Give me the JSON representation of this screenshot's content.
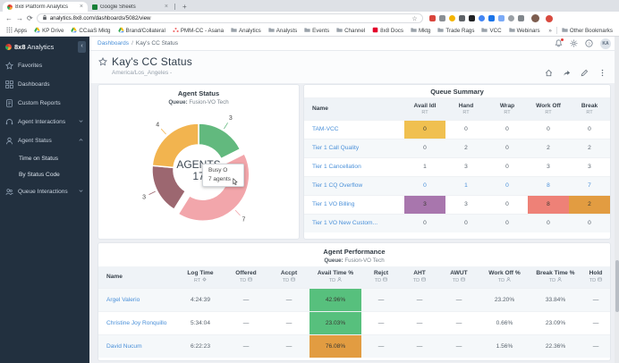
{
  "browser": {
    "tabs": [
      {
        "title": "8x8 Platform Analytics",
        "favicon": "8x8",
        "close": "×"
      },
      {
        "title": "Google Sheets",
        "favicon": "sheets",
        "close": "×"
      }
    ],
    "new_tab_label": "+",
    "nav": {
      "back": "←",
      "forward": "→",
      "reload": "⟳"
    },
    "url": "analytics.8x8.com/dashboards/5082/view",
    "bookmark_star": "☆",
    "extensions": [
      "#d9453c",
      "#8a8f94",
      "#f4b400",
      "#5f6368",
      "#202124",
      "#4285f4",
      "#1a73e8",
      "#7baaf7",
      "#9aa0a6",
      "#80868b"
    ],
    "bookmarks": [
      {
        "label": "Apps",
        "icon": "apps-grid"
      },
      {
        "label": "KP Drive",
        "icon": "drive"
      },
      {
        "label": "CCaaS Mktg",
        "icon": "drive"
      },
      {
        "label": "Brand/Collateral",
        "icon": "drive"
      },
      {
        "label": "PMM-CC - Asana",
        "icon": "asana"
      },
      {
        "label": "Analytics",
        "icon": "folder"
      },
      {
        "label": "Analysts",
        "icon": "folder"
      },
      {
        "label": "Events",
        "icon": "folder"
      },
      {
        "label": "Channel",
        "icon": "folder"
      },
      {
        "label": "8x8 Docs",
        "icon": "8x8red"
      },
      {
        "label": "Mktg",
        "icon": "folder"
      },
      {
        "label": "Trade Rags",
        "icon": "folder"
      },
      {
        "label": "VCC",
        "icon": "folder"
      },
      {
        "label": "Webinars",
        "icon": "folder"
      },
      {
        "label": "X Series",
        "icon": "folder"
      }
    ],
    "bookmarks_overflow": "»",
    "other_bookmarks": {
      "label": "Other Bookmarks",
      "icon": "folder"
    }
  },
  "sidebar": {
    "brand_bold": "8x8",
    "brand_rest": "Analytics",
    "collapse": "‹",
    "items": [
      {
        "label": "Favorites",
        "icon": "star"
      },
      {
        "label": "Dashboards",
        "icon": "dashboard"
      },
      {
        "label": "Custom Reports",
        "icon": "report"
      },
      {
        "label": "Agent Interactions",
        "icon": "headset",
        "chevron": "down"
      },
      {
        "label": "Agent Status",
        "icon": "agent",
        "chevron": "up",
        "children": [
          {
            "label": "Time on Status"
          },
          {
            "label": "By Status Code"
          }
        ]
      },
      {
        "label": "Queue Interactions",
        "icon": "queue",
        "chevron": "down"
      }
    ]
  },
  "header": {
    "breadcrumb_link": "Dashboards",
    "breadcrumb_sep": "/",
    "breadcrumb_current": "Kay's CC Status",
    "action_icons": [
      "notifications",
      "settings",
      "help"
    ],
    "avatar": "KA"
  },
  "page": {
    "title": "Kay's CC Status",
    "timezone": "America/Los_Angeles -",
    "action_icons": [
      "home",
      "share",
      "edit",
      "more"
    ]
  },
  "agent_status": {
    "title": "Agent Status",
    "queue_label": "Queue:",
    "queue_value": "Fusion-VO Tech",
    "center_label": "AGENTS",
    "center_value": "17",
    "tooltip": {
      "line1": "Busy O",
      "line2": "7 agents"
    }
  },
  "chart_data": {
    "type": "pie",
    "donut": true,
    "title": "Agent Status",
    "subtitle": "Queue: Fusion-VO Tech",
    "total": 17,
    "center_label": "AGENTS",
    "center_value": 17,
    "slices": [
      {
        "value": 3,
        "color": "#62b97e"
      },
      {
        "value": 7,
        "color": "#f2a6ab",
        "exploded": true,
        "tooltip": "Busy O — 7 agents"
      },
      {
        "value": 3,
        "color": "#9c6770"
      },
      {
        "value": 4,
        "color": "#f2b44f"
      }
    ]
  },
  "queue_summary": {
    "title": "Queue Summary",
    "columns": [
      {
        "label": "Name",
        "sub": ""
      },
      {
        "label": "Avail Idl",
        "sub": "RT"
      },
      {
        "label": "Hand",
        "sub": "RT"
      },
      {
        "label": "Wrap",
        "sub": "RT"
      },
      {
        "label": "Work Off",
        "sub": "RT"
      },
      {
        "label": "Break",
        "sub": "RT"
      }
    ],
    "rows": [
      {
        "name": "TAM-VCC",
        "cells": [
          {
            "t": "0",
            "bg": "#f0c050"
          },
          {
            "t": "0"
          },
          {
            "t": "0"
          },
          {
            "t": "0"
          },
          {
            "t": "0"
          }
        ]
      },
      {
        "name": "Tier 1 Call Quality",
        "cells": [
          {
            "t": "0"
          },
          {
            "t": "2"
          },
          {
            "t": "0"
          },
          {
            "t": "2"
          },
          {
            "t": "2"
          }
        ]
      },
      {
        "name": "Tier 1 Cancellation",
        "cells": [
          {
            "t": "1"
          },
          {
            "t": "3"
          },
          {
            "t": "0"
          },
          {
            "t": "3"
          },
          {
            "t": "3"
          }
        ]
      },
      {
        "name": "Tier 1 CQ Overflow",
        "cells": [
          {
            "t": "0",
            "link": true
          },
          {
            "t": "1",
            "link": true
          },
          {
            "t": "0",
            "link": true
          },
          {
            "t": "8",
            "link": true
          },
          {
            "t": "7",
            "link": true
          }
        ]
      },
      {
        "name": "Tier 1 VO Billing",
        "cells": [
          {
            "t": "3",
            "bg": "#a876ad"
          },
          {
            "t": "3"
          },
          {
            "t": "0"
          },
          {
            "t": "8",
            "bg": "#ee8177"
          },
          {
            "t": "2",
            "bg": "#e29c41"
          }
        ]
      },
      {
        "name": "Tier 1 VO New Custom...",
        "cells": [
          {
            "t": "0"
          },
          {
            "t": "0"
          },
          {
            "t": "0"
          },
          {
            "t": "0"
          },
          {
            "t": "0"
          }
        ]
      }
    ]
  },
  "agent_performance": {
    "title": "Agent Performance",
    "queue_label": "Queue:",
    "queue_value": "Fusion-VO Tech",
    "columns": [
      {
        "label": "Name",
        "sub": "",
        "icon": ""
      },
      {
        "label": "Log Time",
        "sub": "RT",
        "icon": "gear"
      },
      {
        "label": "Offered",
        "sub": "TD",
        "icon": "card"
      },
      {
        "label": "Accpt",
        "sub": "TD",
        "icon": "card"
      },
      {
        "label": "Avail Time %",
        "sub": "TD",
        "icon": "agent"
      },
      {
        "label": "Rejct",
        "sub": "TD",
        "icon": "card"
      },
      {
        "label": "AHT",
        "sub": "TD",
        "icon": "card"
      },
      {
        "label": "AWUT",
        "sub": "TD",
        "icon": "card"
      },
      {
        "label": "Work Off %",
        "sub": "TD",
        "icon": "agent"
      },
      {
        "label": "Break Time %",
        "sub": "TD",
        "icon": "agent"
      },
      {
        "label": "Hold",
        "sub": "TD",
        "icon": "card"
      }
    ],
    "rows": [
      {
        "name": "Argel Valerio",
        "cells": [
          {
            "t": "4:24:39"
          },
          {
            "t": "—"
          },
          {
            "t": "—"
          },
          {
            "t": "42.96%",
            "bg": "#57c07d"
          },
          {
            "t": "—"
          },
          {
            "t": "—"
          },
          {
            "t": "—"
          },
          {
            "t": "23.20%"
          },
          {
            "t": "33.84%"
          },
          {
            "t": "—"
          }
        ]
      },
      {
        "name": "Christine Joy Ronquillo",
        "cells": [
          {
            "t": "5:34:04"
          },
          {
            "t": "—"
          },
          {
            "t": "—"
          },
          {
            "t": "23.03%",
            "bg": "#57c07d"
          },
          {
            "t": "—"
          },
          {
            "t": "—"
          },
          {
            "t": "—"
          },
          {
            "t": "0.66%"
          },
          {
            "t": "23.09%"
          },
          {
            "t": "—"
          }
        ]
      },
      {
        "name": "David Nucum",
        "cells": [
          {
            "t": "6:22:23"
          },
          {
            "t": "—"
          },
          {
            "t": "—"
          },
          {
            "t": "76.08%",
            "bg": "#e29c41"
          },
          {
            "t": "—"
          },
          {
            "t": "—"
          },
          {
            "t": "—"
          },
          {
            "t": "1.56%"
          },
          {
            "t": "22.36%"
          },
          {
            "t": "—"
          }
        ]
      }
    ]
  }
}
